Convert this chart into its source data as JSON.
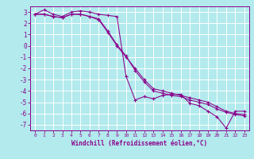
{
  "xlabel": "Windchill (Refroidissement éolien,°C)",
  "background_color": "#b2eaed",
  "grid_color": "#ffffff",
  "line_color": "#8b008b",
  "ylim": [
    -7.5,
    3.5
  ],
  "xlim": [
    -0.5,
    23.5
  ],
  "yticks": [
    3,
    2,
    1,
    0,
    -1,
    -2,
    -3,
    -4,
    -5,
    -6,
    -7
  ],
  "xticks": [
    0,
    1,
    2,
    3,
    4,
    5,
    6,
    7,
    8,
    9,
    10,
    11,
    12,
    13,
    14,
    15,
    16,
    17,
    18,
    19,
    20,
    21,
    22,
    23
  ],
  "series": [
    [
      2.8,
      3.2,
      2.8,
      2.6,
      3.0,
      3.1,
      3.0,
      2.8,
      2.7,
      2.6,
      -2.7,
      -4.8,
      -4.5,
      -4.7,
      -4.4,
      -4.3,
      -4.3,
      -5.1,
      -5.3,
      -5.8,
      -6.3,
      -7.3,
      -5.8,
      -5.8
    ],
    [
      2.8,
      2.8,
      2.6,
      2.5,
      2.8,
      2.8,
      2.6,
      2.3,
      1.2,
      0.0,
      -1.0,
      -2.0,
      -3.0,
      -3.8,
      -4.0,
      -4.2,
      -4.4,
      -4.6,
      -4.8,
      -5.0,
      -5.4,
      -5.8,
      -6.0,
      -6.1
    ],
    [
      2.8,
      2.8,
      2.6,
      2.5,
      2.8,
      2.8,
      2.6,
      2.4,
      1.3,
      0.1,
      -0.9,
      -2.2,
      -3.2,
      -4.0,
      -4.2,
      -4.4,
      -4.5,
      -4.8,
      -5.0,
      -5.2,
      -5.6,
      -5.9,
      -6.1,
      -6.2
    ]
  ]
}
